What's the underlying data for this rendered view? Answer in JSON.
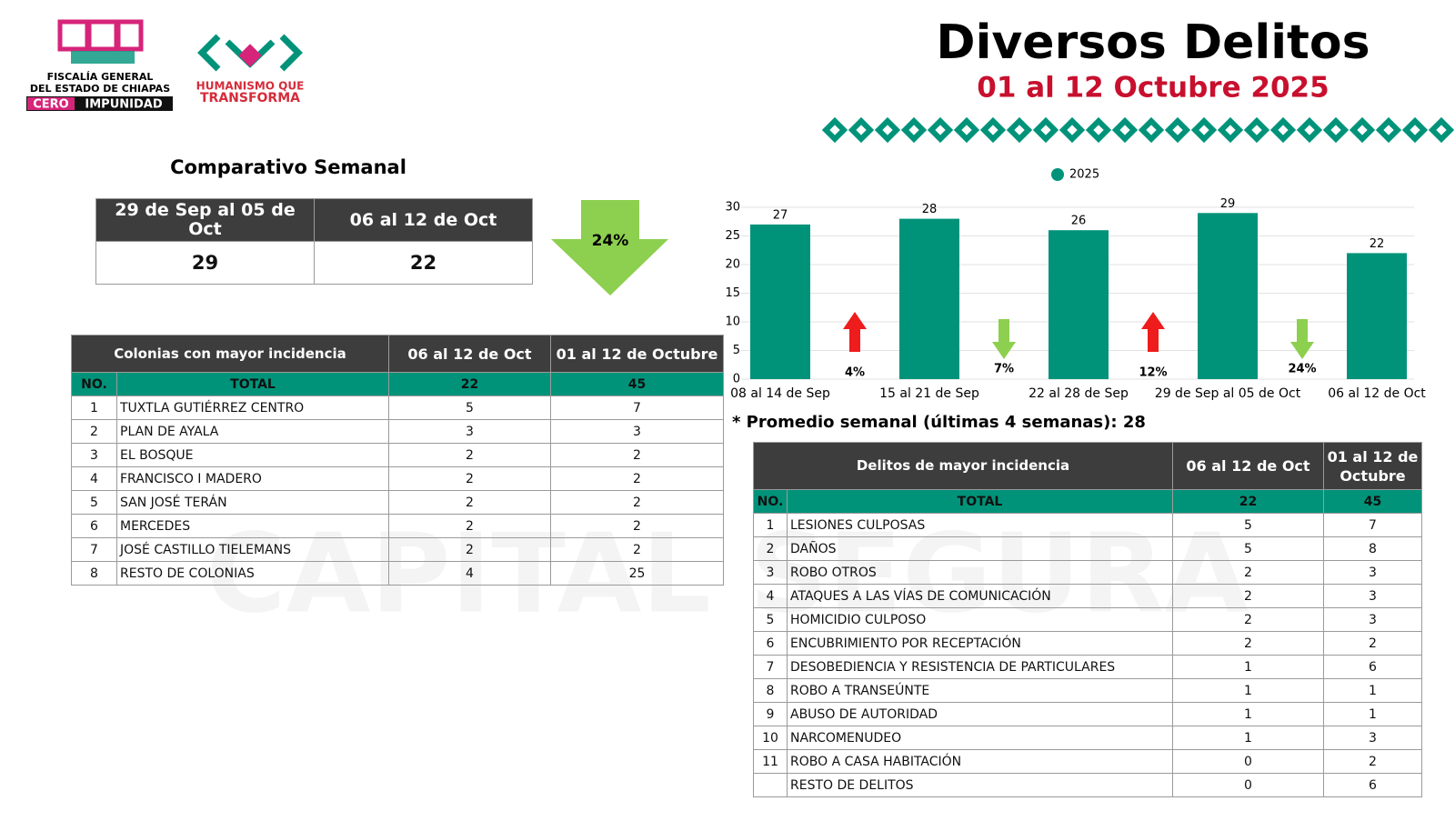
{
  "header": {
    "logo_left": [
      "FISCALÍA GENERAL",
      "DEL ESTADO DE CHIAPAS"
    ],
    "logo_left_badge": [
      "CERO",
      "IMPUNIDAD"
    ],
    "logo_right": [
      "HUMANISMO QUE",
      "TRANSFORMA"
    ],
    "title": "Diversos Delitos",
    "subtitle": "01 al 12 Octubre 2025",
    "watermark": "CAPITAL SEGURA"
  },
  "weekly": {
    "title": "Comparativo Semanal",
    "headers": [
      "29 de Sep al 05 de Oct",
      "06 al 12 de Oct"
    ],
    "values": [
      29,
      22
    ],
    "change": "24%"
  },
  "colonias": {
    "headers": [
      "Colonias  con mayor incidencia",
      "06 al 12 de Oct",
      "01 al 12 de Octubre"
    ],
    "total": [
      "NO.",
      "TOTAL",
      22,
      45
    ],
    "rows": [
      {
        "no": 1,
        "name": "TUXTLA GUTIÉRREZ CENTRO",
        "week": 5,
        "month": 7
      },
      {
        "no": 2,
        "name": "PLAN DE AYALA",
        "week": 3,
        "month": 3
      },
      {
        "no": 3,
        "name": "EL BOSQUE",
        "week": 2,
        "month": 2
      },
      {
        "no": 4,
        "name": "FRANCISCO I MADERO",
        "week": 2,
        "month": 2
      },
      {
        "no": 5,
        "name": "SAN JOSÉ TERÁN",
        "week": 2,
        "month": 2
      },
      {
        "no": 6,
        "name": "MERCEDES",
        "week": 2,
        "month": 2
      },
      {
        "no": 7,
        "name": "JOSÉ CASTILLO TIELEMANS",
        "week": 2,
        "month": 2
      },
      {
        "no": 8,
        "name": "RESTO DE COLONIAS",
        "week": 4,
        "month": 25
      }
    ]
  },
  "chart_data": {
    "type": "bar",
    "categories": [
      "08 al 14 de Sep",
      "15 al 21 de Sep",
      "22 al 28 de Sep",
      "29 de Sep al 05 de Oct",
      "06 al 12 de Oct"
    ],
    "series": [
      {
        "name": "2025",
        "color": "#00937a",
        "values": [
          27,
          28,
          26,
          29,
          22
        ]
      }
    ],
    "ylim": [
      0,
      30
    ],
    "yticks": [
      0,
      5,
      10,
      15,
      20,
      25,
      30
    ],
    "grid": true,
    "legend": "top",
    "changes": [
      {
        "label": "4%",
        "direction": "up"
      },
      {
        "label": "7%",
        "direction": "down"
      },
      {
        "label": "12%",
        "direction": "up"
      },
      {
        "label": "24%",
        "direction": "down"
      }
    ]
  },
  "average_note": "* Promedio semanal (últimas 4 semanas): 28",
  "delitos": {
    "headers": [
      "Delitos de mayor incidencia",
      "06 al 12 de Oct",
      "01 al 12 de Octubre"
    ],
    "total": [
      "NO.",
      "TOTAL",
      22,
      45
    ],
    "rows": [
      {
        "no": 1,
        "name": "LESIONES CULPOSAS",
        "week": 5,
        "month": 7
      },
      {
        "no": 2,
        "name": "DAÑOS",
        "week": 5,
        "month": 8
      },
      {
        "no": 3,
        "name": "ROBO OTROS",
        "week": 2,
        "month": 3
      },
      {
        "no": 4,
        "name": "ATAQUES A LAS VÍAS DE COMUNICACIÓN",
        "week": 2,
        "month": 3
      },
      {
        "no": 5,
        "name": "HOMICIDIO CULPOSO",
        "week": 2,
        "month": 3
      },
      {
        "no": 6,
        "name": "ENCUBRIMIENTO POR RECEPTACIÓN",
        "week": 2,
        "month": 2
      },
      {
        "no": 7,
        "name": "DESOBEDIENCIA Y RESISTENCIA DE PARTICULARES",
        "week": 1,
        "month": 6
      },
      {
        "no": 8,
        "name": "ROBO A TRANSEÚNTE",
        "week": 1,
        "month": 1
      },
      {
        "no": 9,
        "name": "ABUSO DE AUTORIDAD",
        "week": 1,
        "month": 1
      },
      {
        "no": 10,
        "name": "NARCOMENUDEO",
        "week": 1,
        "month": 3
      },
      {
        "no": 11,
        "name": "ROBO A CASA HABITACIÓN",
        "week": 0,
        "month": 2
      },
      {
        "name": "RESTO DE DELITOS",
        "week": 0,
        "month": 6
      }
    ]
  }
}
